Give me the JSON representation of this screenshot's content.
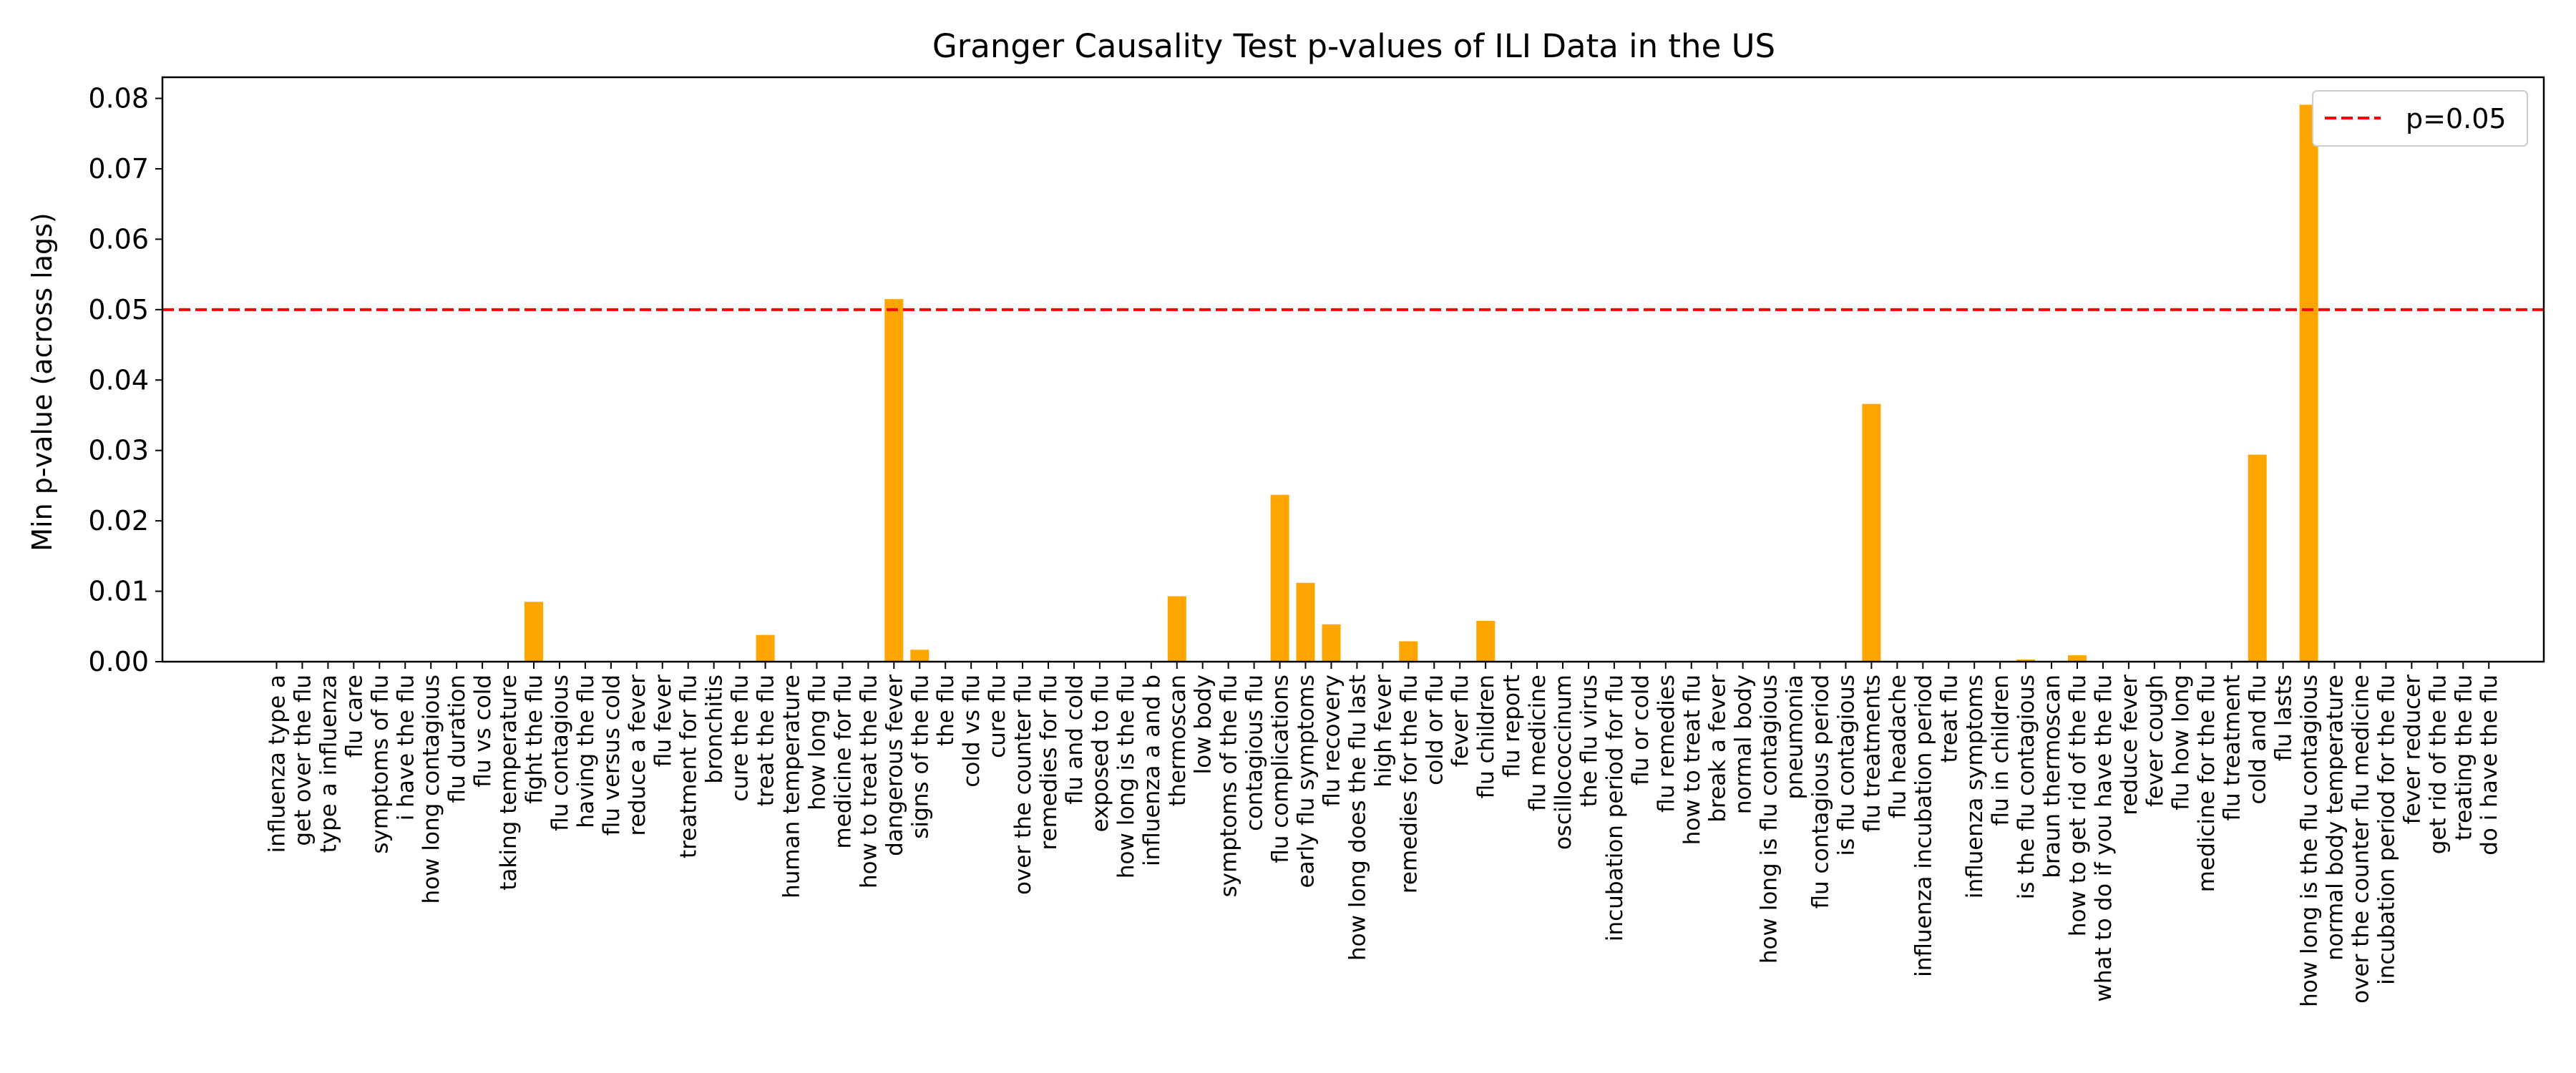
{
  "chart_data": {
    "type": "bar",
    "title": "Granger Causality Test p-values of ILI Data in the US",
    "xlabel": "",
    "ylabel": "Min p-value (across lags)",
    "ylim": [
      0,
      0.083
    ],
    "yticks": [
      "0.00",
      "0.01",
      "0.02",
      "0.03",
      "0.04",
      "0.05",
      "0.06",
      "0.07",
      "0.08"
    ],
    "grid": false,
    "legend_position": "top-right",
    "bar_color": "#ffa500",
    "threshold": {
      "value": 0.05,
      "label": "p=0.05",
      "color": "#ff0000",
      "style": "dashed"
    },
    "categories": [
      "influenza type a",
      "get over the flu",
      "type a influenza",
      "flu care",
      "symptoms of flu",
      "i have the flu",
      "how long contagious",
      "flu duration",
      "flu vs cold",
      "taking temperature",
      "fight the flu",
      "flu contagious",
      "having the flu",
      "flu versus cold",
      "reduce a fever",
      "flu fever",
      "treatment for flu",
      "bronchitis",
      "cure the flu",
      "treat the flu",
      "human temperature",
      "how long flu",
      "medicine for flu",
      "how to treat the flu",
      "dangerous fever",
      "signs of the flu",
      "the flu",
      "cold vs flu",
      "cure flu",
      "over the counter flu",
      "remedies for flu",
      "flu and cold",
      "exposed to flu",
      "how long is the flu",
      "influenza a and b",
      "thermoscan",
      "low body",
      "symptoms of the flu",
      "contagious flu",
      "flu complications",
      "early flu symptoms",
      "flu recovery",
      "how long does the flu last",
      "high fever",
      "remedies for the flu",
      "cold or flu",
      "fever flu",
      "flu children",
      "flu report",
      "flu medicine",
      "oscillococcinum",
      "the flu virus",
      "incubation period for flu",
      "flu or cold",
      "flu remedies",
      "how to treat flu",
      "break a fever",
      "normal body",
      "how long is flu contagious",
      "pneumonia",
      "flu contagious period",
      "is flu contagious",
      "flu treatments",
      "flu headache",
      "influenza incubation period",
      "treat flu",
      "influenza symptoms",
      "flu in children",
      "is the flu contagious",
      "braun thermoscan",
      "how to get rid of the flu",
      "what to do if you have the flu",
      "reduce fever",
      "fever cough",
      "flu how long",
      "medicine for the flu",
      "flu treatment",
      "cold and flu",
      "flu lasts",
      "how long is the flu contagious",
      "normal body temperature",
      "over the counter flu medicine",
      "incubation period for the flu",
      "fever reducer",
      "get rid of the flu",
      "treating the flu",
      "do i have the flu"
    ],
    "values": [
      0,
      0,
      0,
      0,
      0,
      0,
      0,
      0,
      0,
      0,
      0.0085,
      0,
      0,
      0,
      0,
      0,
      0,
      0,
      0,
      0.0038,
      0,
      0,
      0,
      0,
      0.0515,
      0.0017,
      0,
      0,
      0,
      0,
      0,
      0,
      0,
      0,
      0,
      0.0093,
      0,
      0,
      0,
      0.0237,
      0.0112,
      0.0053,
      0,
      0,
      0.0029,
      0,
      0,
      0.0058,
      0,
      0,
      0,
      0,
      0,
      0,
      0,
      0,
      0.0001,
      0,
      0,
      0,
      0,
      0,
      0.0366,
      0,
      0,
      0,
      0,
      0,
      0.0003,
      0,
      0.0009,
      0,
      0,
      0,
      0,
      0,
      0,
      0.0294,
      0,
      0.0791,
      0,
      0,
      0,
      0,
      0,
      0,
      0
    ]
  }
}
